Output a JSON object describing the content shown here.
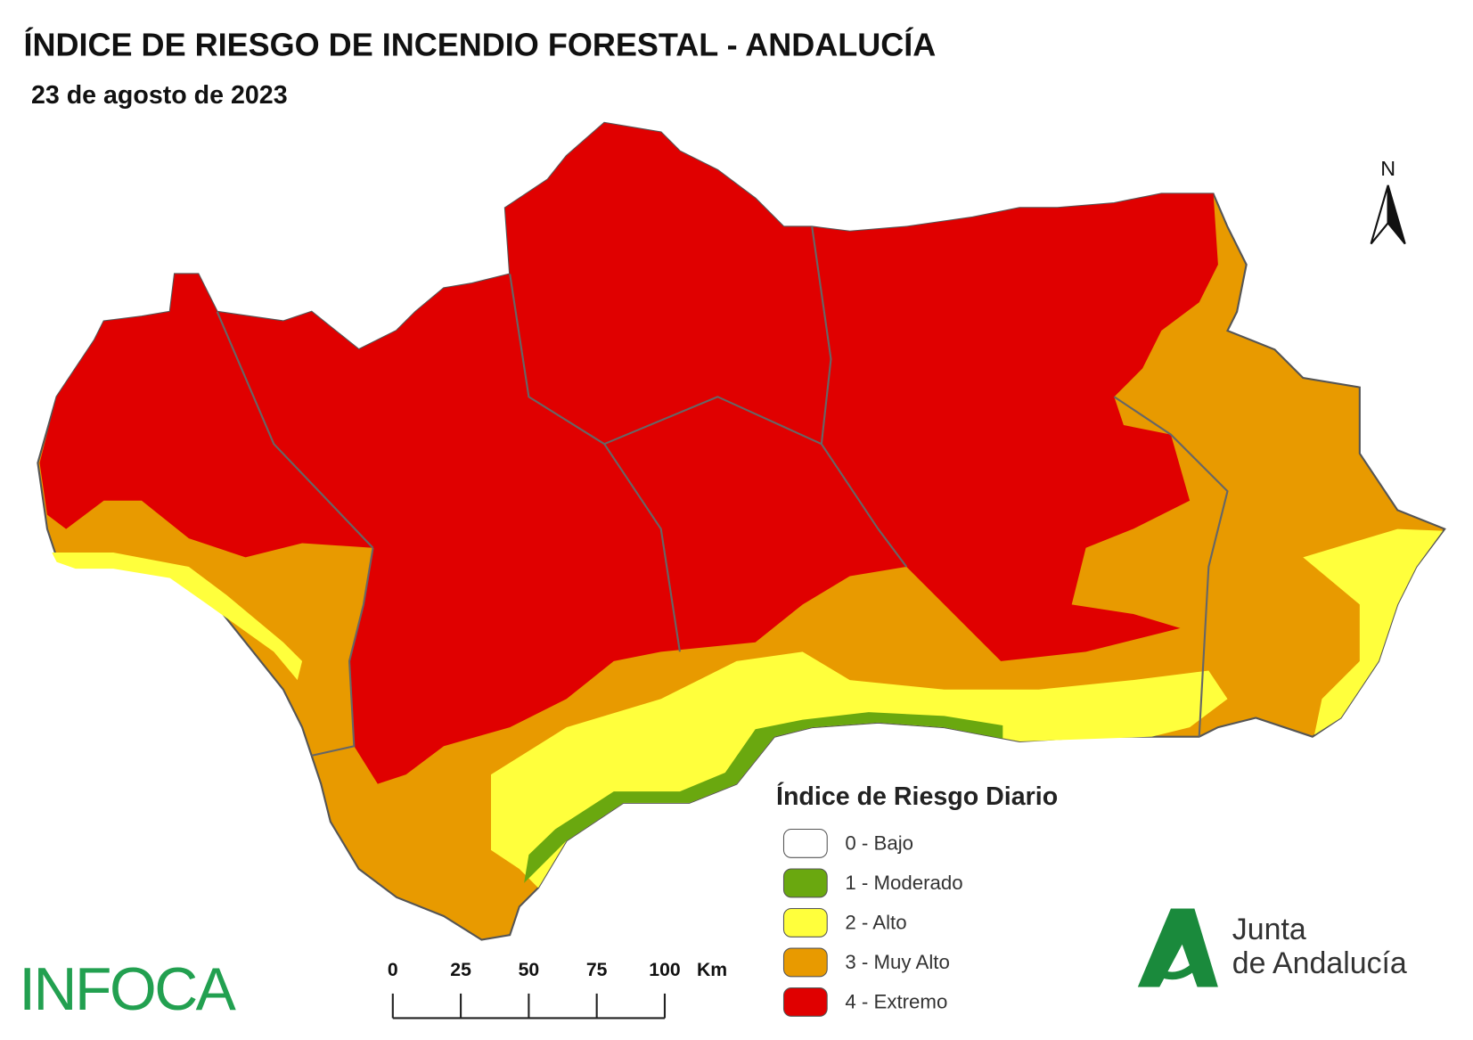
{
  "header": {
    "title": "ÍNDICE DE RIESGO DE INCENDIO FORESTAL - ANDALUCÍA",
    "date": "23 de agosto de 2023"
  },
  "legend": {
    "title": "Índice de Riesgo Diario",
    "items": [
      {
        "label": "0 - Bajo",
        "color": "#ffffff"
      },
      {
        "label": "1 - Moderado",
        "color": "#6aa80f"
      },
      {
        "label": "2 - Alto",
        "color": "#ffff3c"
      },
      {
        "label": "3 - Muy Alto",
        "color": "#e89a00"
      },
      {
        "label": "4 - Extremo",
        "color": "#e00000"
      }
    ]
  },
  "scale_bar": {
    "ticks": [
      0,
      25,
      50,
      75,
      100
    ],
    "unit": "Km"
  },
  "north": "N",
  "logos": {
    "infoca": "INFOCA",
    "junta": [
      "Junta",
      "de Andalucía"
    ]
  }
}
